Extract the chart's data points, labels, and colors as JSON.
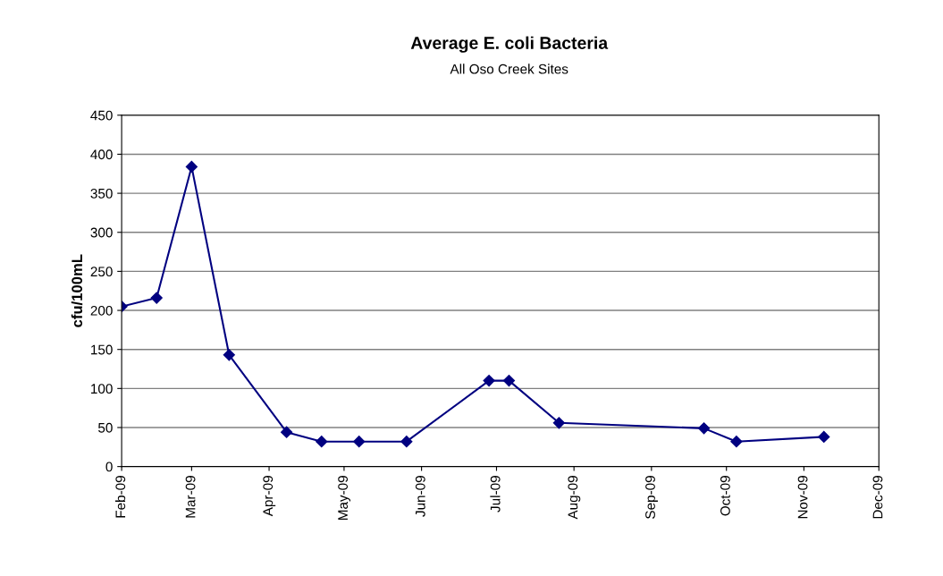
{
  "chart_data": {
    "type": "line",
    "title": "Average E. coli Bacteria",
    "subtitle": "All Oso Creek Sites",
    "ylabel": "cfu/100mL",
    "x": [
      "2009-02-01",
      "2009-02-15",
      "2009-03-01",
      "2009-03-16",
      "2009-04-08",
      "2009-04-22",
      "2009-05-07",
      "2009-05-26",
      "2009-06-28",
      "2009-07-06",
      "2009-07-26",
      "2009-09-22",
      "2009-10-05",
      "2009-11-09"
    ],
    "series": [
      {
        "color": "#000080",
        "values": [
          205,
          216,
          384,
          143,
          44,
          32,
          32,
          32,
          110,
          110,
          56,
          49,
          32,
          38
        ]
      }
    ],
    "marker": "diamond",
    "line_style": "solid",
    "grid": "y",
    "legend": false,
    "xlim": [
      "2009-02-01",
      "2009-12-01"
    ],
    "xticks": [
      {
        "value": "2009-02-01",
        "label": "Feb-09"
      },
      {
        "value": "2009-03-01",
        "label": "Mar-09"
      },
      {
        "value": "2009-04-01",
        "label": "Apr-09"
      },
      {
        "value": "2009-05-01",
        "label": "May-09"
      },
      {
        "value": "2009-06-01",
        "label": "Jun-09"
      },
      {
        "value": "2009-07-01",
        "label": "Jul-09"
      },
      {
        "value": "2009-08-01",
        "label": "Aug-09"
      },
      {
        "value": "2009-09-01",
        "label": "Sep-09"
      },
      {
        "value": "2009-10-01",
        "label": "Oct-09"
      },
      {
        "value": "2009-11-01",
        "label": "Nov-09"
      },
      {
        "value": "2009-12-01",
        "label": "Dec-09"
      }
    ],
    "ylim": [
      0,
      450
    ],
    "yticks": [
      0,
      50,
      100,
      150,
      200,
      250,
      300,
      350,
      400,
      450
    ]
  }
}
